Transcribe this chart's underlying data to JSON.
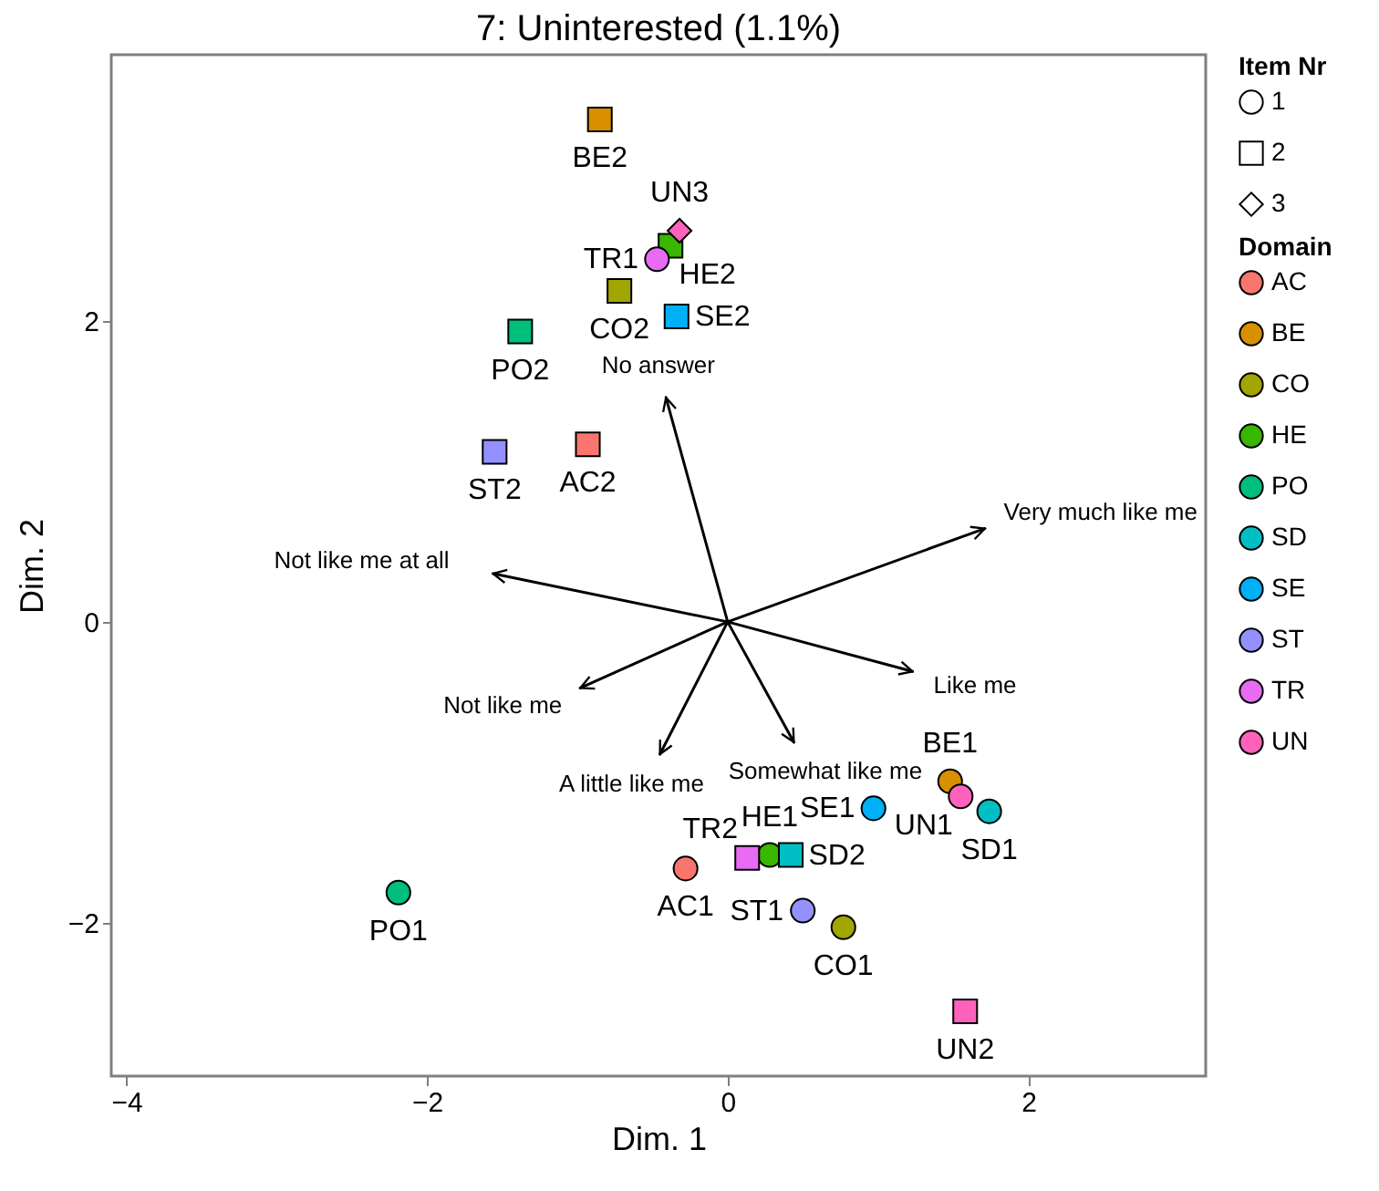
{
  "chart_data": {
    "type": "scatter",
    "title": "7: Uninterested (1.1%)",
    "xlabel": "Dim. 1",
    "ylabel": "Dim. 2",
    "legend_title": [
      "Domain",
      "Item Nr"
    ],
    "legend": "right",
    "grid": false,
    "xlim": [
      -4.1,
      3.18
    ],
    "ylim": [
      -3.02,
      3.77
    ],
    "xticks": [
      -4,
      -2,
      0,
      2
    ],
    "yticks": [
      -2,
      0,
      2
    ],
    "series": [
      {
        "name": "AC",
        "color": "#f8766d",
        "x": [
          -0.28,
          -0.93
        ],
        "values": [
          -1.64,
          1.18
        ],
        "marker": [
          "circle",
          "square"
        ],
        "value_labels": [
          "AC1",
          "AC2"
        ]
      },
      {
        "name": "BE",
        "color": "#d89000",
        "x": [
          1.48,
          -0.85
        ],
        "values": [
          -1.06,
          3.34
        ],
        "marker": [
          "circle",
          "square"
        ],
        "value_labels": [
          "BE1",
          "BE2"
        ]
      },
      {
        "name": "CO",
        "color": "#a3a500",
        "x": [
          0.77,
          -0.72
        ],
        "values": [
          -2.03,
          2.2
        ],
        "marker": [
          "circle",
          "square"
        ],
        "value_labels": [
          "CO1",
          "CO2"
        ]
      },
      {
        "name": "HE",
        "color": "#39b600",
        "x": [
          0.28,
          -0.38
        ],
        "values": [
          -1.55,
          2.5
        ],
        "marker": [
          "circle",
          "square"
        ],
        "value_labels": [
          "HE1",
          "HE2"
        ]
      },
      {
        "name": "PO",
        "color": "#00bf7d",
        "x": [
          -2.19,
          -1.38
        ],
        "values": [
          -1.8,
          1.93
        ],
        "marker": [
          "circle",
          "square"
        ],
        "value_labels": [
          "PO1",
          "PO2"
        ]
      },
      {
        "name": "SD",
        "color": "#00bfc4",
        "x": [
          1.74,
          0.42
        ],
        "values": [
          -1.26,
          -1.55
        ],
        "marker": [
          "circle",
          "square"
        ],
        "value_labels": [
          "SD1",
          "SD2"
        ]
      },
      {
        "name": "SE",
        "color": "#00b0f6",
        "x": [
          0.97,
          -0.34
        ],
        "values": [
          -1.24,
          2.03
        ],
        "marker": [
          "circle",
          "square"
        ],
        "value_labels": [
          "SE1",
          "SE2"
        ]
      },
      {
        "name": "ST",
        "color": "#9590ff",
        "x": [
          0.5,
          -1.55
        ],
        "values": [
          -1.92,
          1.13
        ],
        "marker": [
          "circle",
          "square"
        ],
        "value_labels": [
          "ST1",
          "ST2"
        ]
      },
      {
        "name": "TR",
        "color": "#e76bf3",
        "x": [
          -0.47,
          0.13
        ],
        "values": [
          2.41,
          -1.57
        ],
        "marker": [
          "circle",
          "square"
        ],
        "value_labels": [
          "TR1",
          "TR2"
        ]
      },
      {
        "name": "UN",
        "color": "#ff62bc",
        "x": [
          1.55,
          1.58,
          -0.32
        ],
        "values": [
          -1.16,
          -2.59,
          2.6
        ],
        "marker": [
          "circle",
          "square",
          "diamond"
        ],
        "value_labels": [
          "UN1",
          "UN2",
          "UN3"
        ]
      },
      {
        "name": "1",
        "marker": "circle"
      },
      {
        "name": "2",
        "marker": "square"
      },
      {
        "name": "3",
        "marker": "diamond"
      },
      {
        "type": "line",
        "name": "No answer",
        "color": "#000000",
        "x": [
          0,
          -0.41
        ],
        "values": [
          0,
          1.49
        ]
      },
      {
        "type": "line",
        "name": "Not like me at all",
        "color": "#000000",
        "x": [
          0,
          -1.56
        ],
        "values": [
          0,
          0.32
        ]
      },
      {
        "type": "line",
        "name": "Very much like me",
        "color": "#000000",
        "x": [
          0,
          1.71
        ],
        "values": [
          0,
          0.62
        ]
      },
      {
        "type": "line",
        "name": "Like me",
        "color": "#000000",
        "x": [
          0,
          1.23
        ],
        "values": [
          0,
          -0.33
        ]
      },
      {
        "type": "line",
        "name": "Somewhat like me",
        "color": "#000000",
        "x": [
          0,
          0.44
        ],
        "values": [
          0,
          -0.8
        ]
      },
      {
        "type": "line",
        "name": "A little like me",
        "color": "#000000",
        "x": [
          0,
          -0.45
        ],
        "values": [
          0,
          -0.88
        ]
      },
      {
        "type": "line",
        "name": "Not like me",
        "color": "#000000",
        "x": [
          0,
          -0.98
        ],
        "values": [
          0,
          -0.44
        ]
      }
    ]
  }
}
